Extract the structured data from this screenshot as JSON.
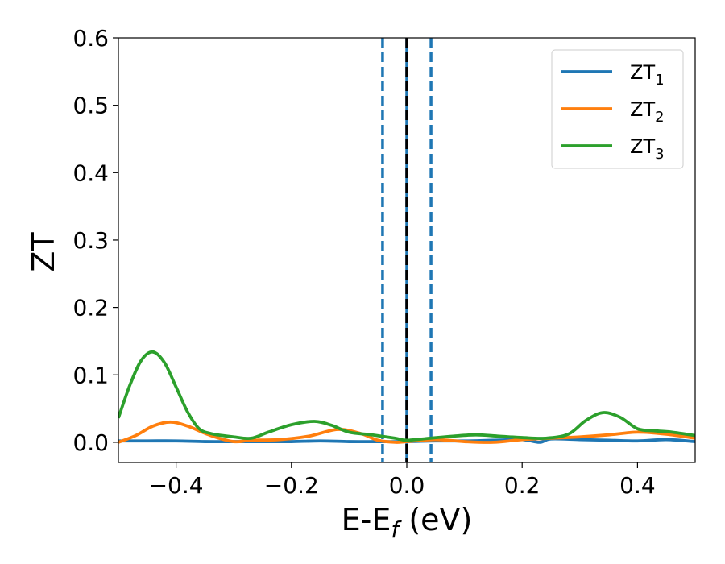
{
  "chart_data": {
    "type": "line",
    "title": "",
    "xlabel": "E-E",
    "xlabel_sub": "f",
    "xlabel_unit": " (eV)",
    "ylabel": "ZT",
    "xlim": [
      -0.5,
      0.5
    ],
    "ylim": [
      -0.03,
      0.6
    ],
    "x_ticks": [
      -0.4,
      -0.2,
      0.0,
      0.2,
      0.4
    ],
    "x_tick_labels": [
      "−0.4",
      "−0.2",
      "0.0",
      "0.2",
      "0.4"
    ],
    "y_ticks": [
      0.0,
      0.1,
      0.2,
      0.3,
      0.4,
      0.5,
      0.6
    ],
    "y_tick_labels": [
      "0.0",
      "0.1",
      "0.2",
      "0.3",
      "0.4",
      "0.5",
      "0.6"
    ],
    "grid": false,
    "legend_position": "top-right",
    "vlines": [
      {
        "x": -0.042,
        "style": "dashed",
        "color": "#1f77b4"
      },
      {
        "x": 0.0,
        "style": "solid",
        "color": "#1f77b4"
      },
      {
        "x": 0.0,
        "style": "dashed",
        "color": "#000000"
      },
      {
        "x": 0.042,
        "style": "dashed",
        "color": "#1f77b4"
      }
    ],
    "series": [
      {
        "name": "ZT",
        "name_sub": "1",
        "color": "#1f77b4",
        "x": [
          -0.5,
          -0.45,
          -0.4,
          -0.35,
          -0.3,
          -0.25,
          -0.2,
          -0.15,
          -0.1,
          -0.05,
          0.0,
          0.05,
          0.1,
          0.15,
          0.2,
          0.23,
          0.25,
          0.3,
          0.35,
          0.4,
          0.45,
          0.5
        ],
        "values": [
          0.002,
          0.002,
          0.002,
          0.001,
          0.001,
          0.001,
          0.001,
          0.002,
          0.001,
          0.001,
          0.001,
          0.002,
          0.002,
          0.003,
          0.004,
          0.0,
          0.005,
          0.004,
          0.003,
          0.002,
          0.004,
          0.001
        ]
      },
      {
        "name": "ZT",
        "name_sub": "2",
        "color": "#ff7f0e",
        "x": [
          -0.5,
          -0.47,
          -0.44,
          -0.41,
          -0.38,
          -0.34,
          -0.3,
          -0.27,
          -0.22,
          -0.17,
          -0.12,
          -0.08,
          -0.05,
          -0.02,
          0.0,
          0.05,
          0.1,
          0.15,
          0.2,
          0.25,
          0.3,
          0.35,
          0.4,
          0.45,
          0.5
        ],
        "values": [
          0.0,
          0.01,
          0.024,
          0.03,
          0.024,
          0.01,
          0.001,
          0.003,
          0.004,
          0.009,
          0.019,
          0.013,
          0.003,
          0.0,
          0.001,
          0.004,
          0.001,
          0.0,
          0.004,
          0.006,
          0.008,
          0.011,
          0.015,
          0.012,
          0.006
        ]
      },
      {
        "name": "ZT",
        "name_sub": "3",
        "color": "#2ca02c",
        "x": [
          -0.5,
          -0.48,
          -0.46,
          -0.44,
          -0.42,
          -0.4,
          -0.38,
          -0.36,
          -0.34,
          -0.32,
          -0.3,
          -0.27,
          -0.24,
          -0.2,
          -0.16,
          -0.13,
          -0.1,
          -0.06,
          -0.02,
          0.0,
          0.04,
          0.08,
          0.12,
          0.16,
          0.2,
          0.24,
          0.28,
          0.31,
          0.34,
          0.37,
          0.4,
          0.43,
          0.46,
          0.5
        ],
        "values": [
          0.036,
          0.085,
          0.122,
          0.134,
          0.118,
          0.082,
          0.045,
          0.02,
          0.013,
          0.01,
          0.008,
          0.006,
          0.015,
          0.026,
          0.031,
          0.025,
          0.015,
          0.011,
          0.006,
          0.003,
          0.006,
          0.009,
          0.011,
          0.009,
          0.007,
          0.006,
          0.012,
          0.032,
          0.044,
          0.037,
          0.02,
          0.017,
          0.015,
          0.01
        ]
      }
    ]
  }
}
